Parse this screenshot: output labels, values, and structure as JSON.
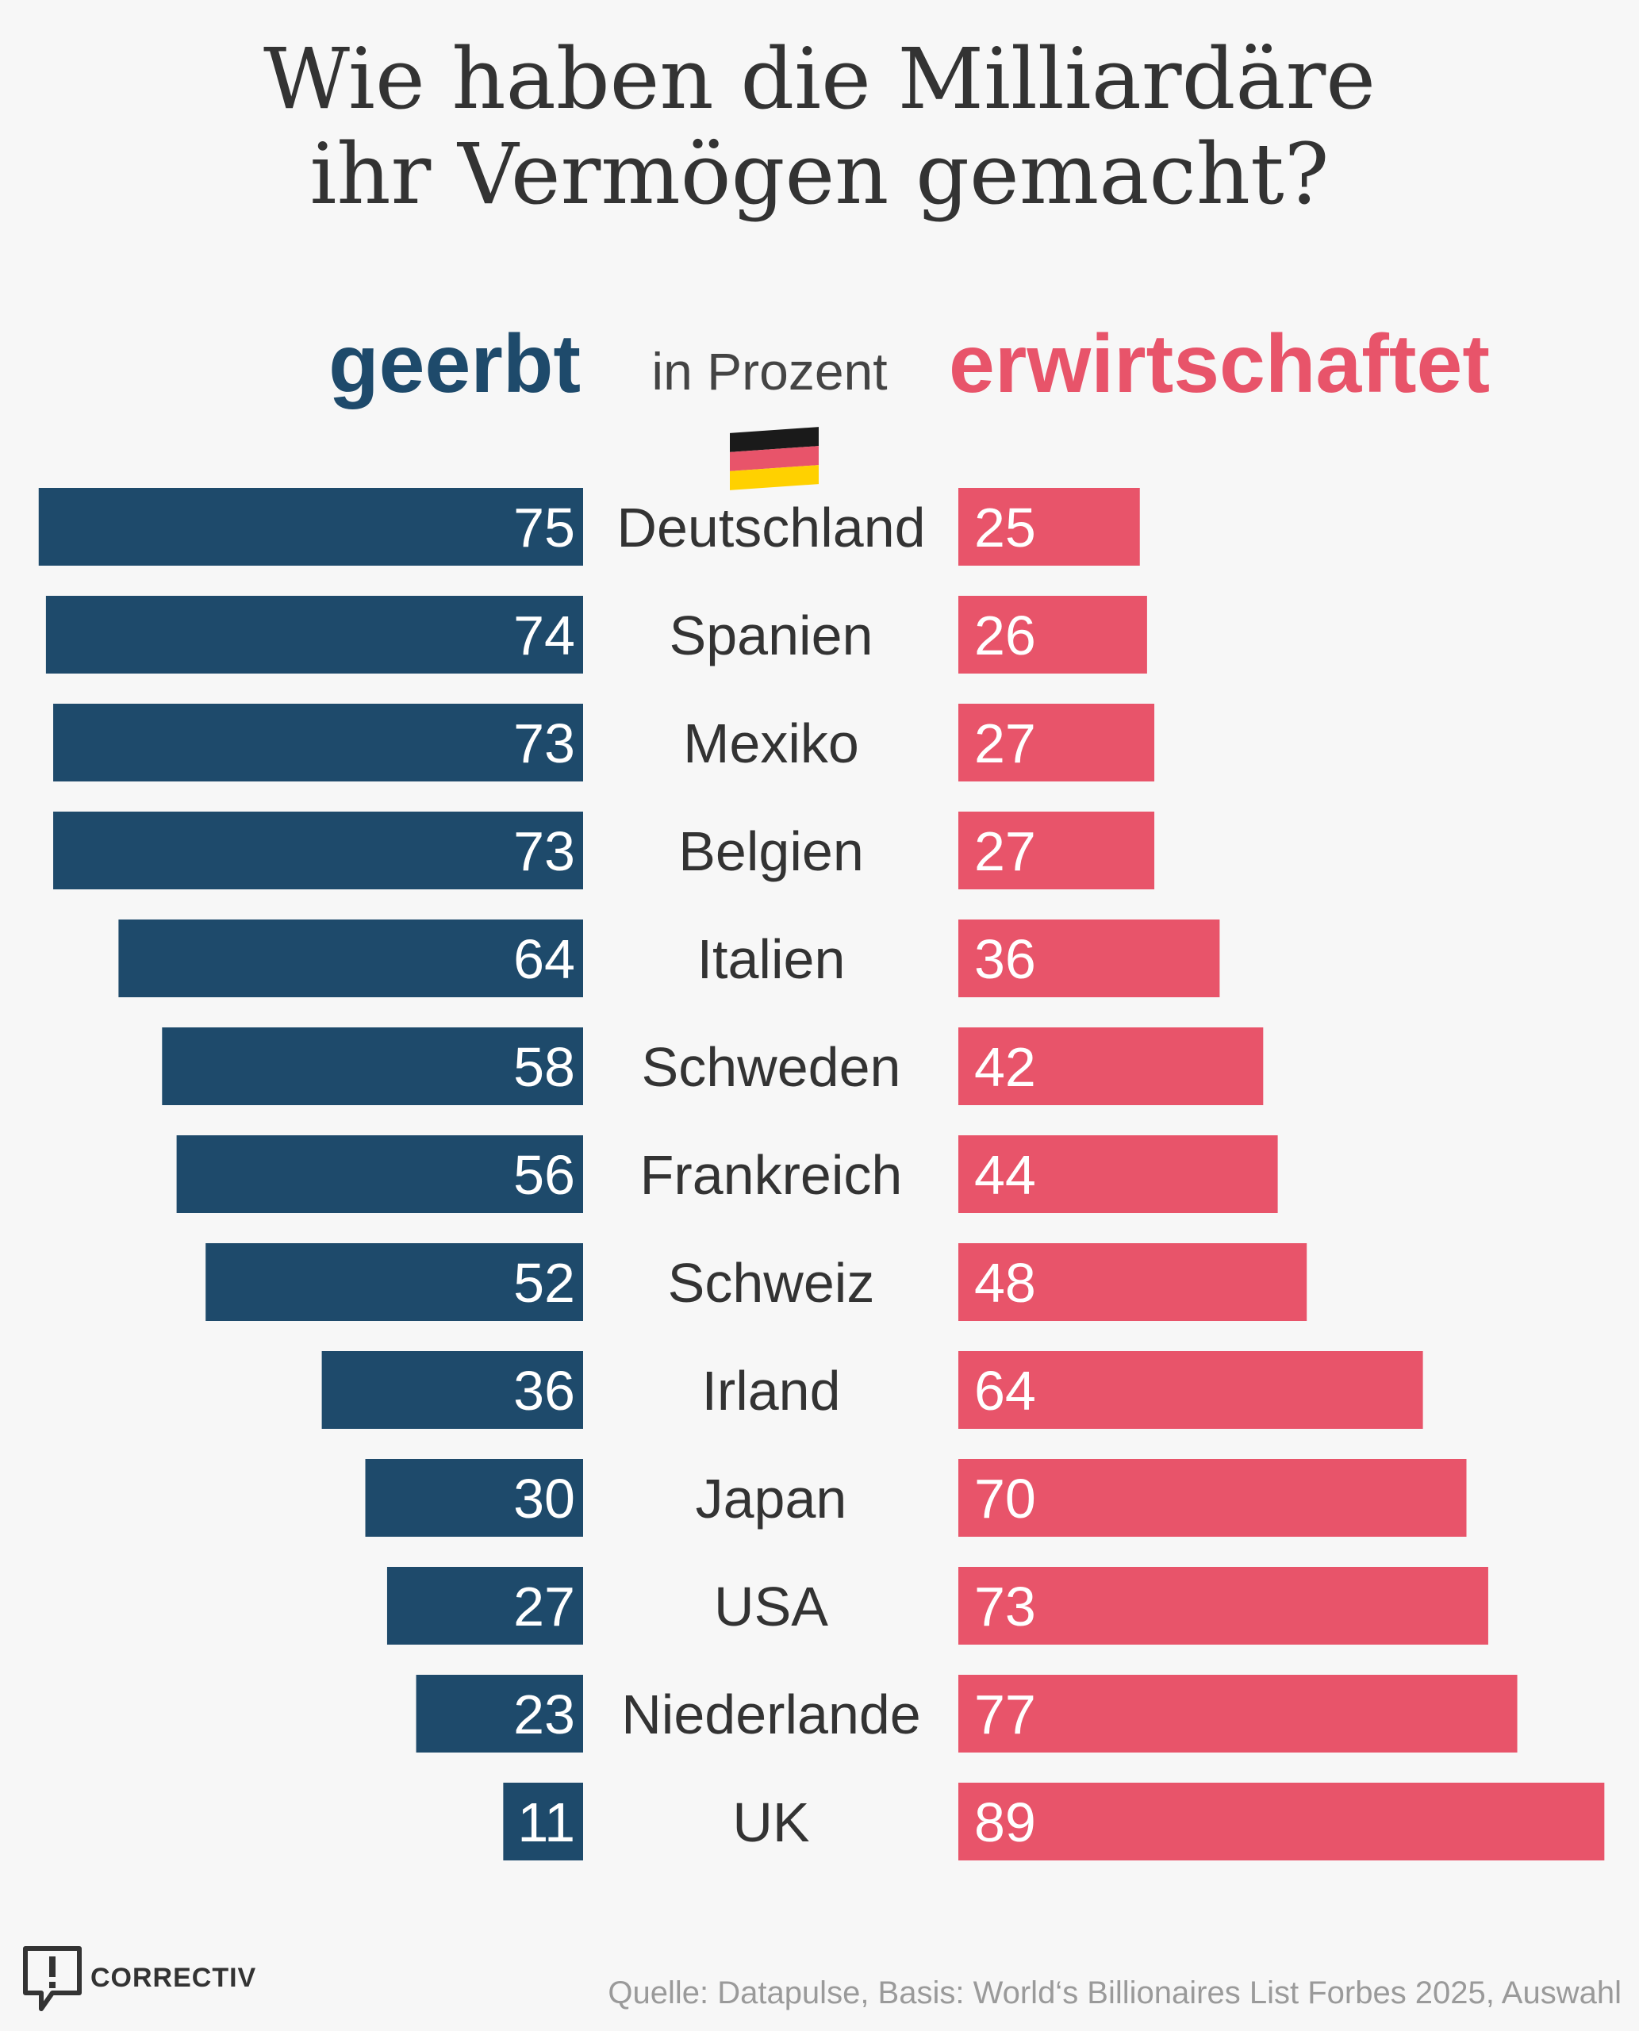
{
  "title_line1": "Wie haben die Milliardäre",
  "title_line2": "ihr Vermögen gemacht?",
  "header": {
    "left": "geerbt",
    "middle": "in Prozent",
    "right": "erwirtschaftet"
  },
  "colors": {
    "inherited": "#1e4a6b",
    "earned": "#e8546a",
    "flag_black": "#1a1a1a",
    "flag_red": "#e8546a",
    "flag_gold": "#ffd100"
  },
  "chart_data": {
    "type": "bar",
    "orientation": "horizontal-diverging",
    "categories": [
      "Deutschland",
      "Spanien",
      "Mexiko",
      "Belgien",
      "Italien",
      "Schweden",
      "Frankreich",
      "Schweiz",
      "Irland",
      "Japan",
      "USA",
      "Niederlande",
      "UK"
    ],
    "series": [
      {
        "name": "geerbt",
        "values": [
          75,
          74,
          73,
          73,
          64,
          58,
          56,
          52,
          36,
          30,
          27,
          23,
          11
        ]
      },
      {
        "name": "erwirtschaftet",
        "values": [
          25,
          26,
          27,
          27,
          36,
          42,
          44,
          48,
          64,
          70,
          73,
          77,
          89
        ]
      }
    ],
    "unit": "in Prozent",
    "highlight_category": "Deutschland"
  },
  "logo": {
    "name": "CORRECTIV",
    "icon": "speech-bubble-exclamation-icon"
  },
  "source": "Quelle: Datapulse, Basis: World‘s Billionaires List Forbes 2025, Auswahl"
}
